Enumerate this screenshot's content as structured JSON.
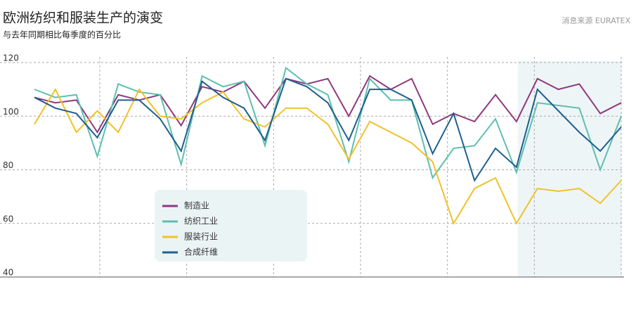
{
  "chart_data": {
    "type": "line",
    "title": "欧洲纺织和服装生产的演变",
    "subtitle": "与去年同期相比每季度的百分比",
    "source": "消息来源 EURATEX",
    "categories": [
      null,
      null,
      null,
      null,
      null,
      null,
      null,
      null,
      null,
      null,
      null,
      null,
      null,
      null,
      null,
      null,
      null,
      null,
      null,
      null,
      null,
      null,
      null,
      null,
      null,
      null,
      null,
      null,
      null
    ],
    "ylim": [
      40,
      120
    ],
    "yticks": [
      40,
      60,
      80,
      100,
      120
    ],
    "grid": true,
    "legend": "center",
    "series": [
      {
        "name": "制造业",
        "color": "#8e3a7e",
        "values": [
          107,
          105,
          106,
          94,
          108,
          106,
          108,
          96.5,
          111,
          109,
          113,
          103,
          114,
          112,
          114,
          100,
          115,
          110,
          114,
          97,
          101,
          98,
          108,
          98,
          114,
          110,
          112,
          101,
          105
        ]
      },
      {
        "name": " 纺织工业",
        "color": "#5dbfb0",
        "values": [
          110,
          107,
          108,
          85,
          112,
          109,
          108,
          82,
          115,
          111,
          113,
          89,
          118,
          112,
          108,
          83,
          114,
          106,
          106,
          77,
          88,
          89,
          99,
          79,
          105,
          104,
          103,
          80,
          100
        ]
      },
      {
        "name": "服装行业",
        "color": "#f0c22a",
        "values": [
          97,
          110,
          94,
          102,
          94,
          110,
          100,
          99,
          105,
          109,
          99,
          96,
          103,
          103,
          97,
          84,
          98,
          94,
          90,
          83,
          60,
          73,
          77,
          60,
          73,
          72,
          73,
          67.5,
          76
        ]
      },
      {
        "name": " 合成纤维",
        "color": "#1f5f8e",
        "values": [
          107,
          103,
          101,
          92,
          106,
          106,
          99,
          87,
          113,
          107,
          103,
          91,
          114,
          111,
          105,
          91,
          110,
          110,
          106,
          86,
          101,
          76,
          88,
          81,
          110,
          102,
          94,
          87,
          96
        ]
      }
    ]
  }
}
